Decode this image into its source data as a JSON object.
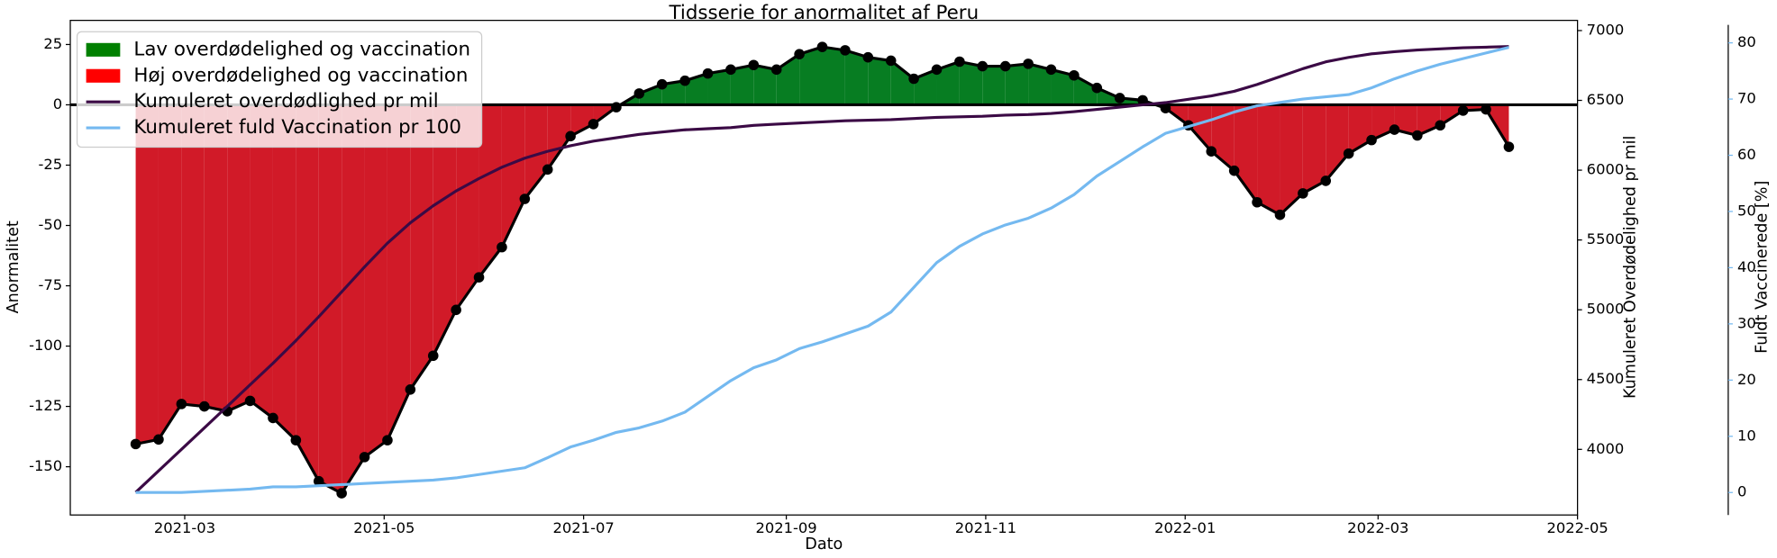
{
  "chart_data": {
    "type": "line",
    "title": "Tidsserie for anormalitet af Peru",
    "xlabel": "Dato",
    "ylabel": "Anormalitet",
    "y2label": "Kumuleret Overdødelighed pr mil",
    "y3label": "Fuldt Vaccinerede [%]",
    "x": [
      "2021-02-14",
      "2021-02-21",
      "2021-02-28",
      "2021-03-07",
      "2021-03-14",
      "2021-03-21",
      "2021-03-28",
      "2021-04-04",
      "2021-04-11",
      "2021-04-18",
      "2021-04-25",
      "2021-05-02",
      "2021-05-09",
      "2021-05-16",
      "2021-05-23",
      "2021-05-30",
      "2021-06-06",
      "2021-06-13",
      "2021-06-20",
      "2021-06-27",
      "2021-07-04",
      "2021-07-11",
      "2021-07-18",
      "2021-07-25",
      "2021-08-01",
      "2021-08-08",
      "2021-08-15",
      "2021-08-22",
      "2021-08-29",
      "2021-09-05",
      "2021-09-12",
      "2021-09-19",
      "2021-09-26",
      "2021-10-03",
      "2021-10-10",
      "2021-10-17",
      "2021-10-24",
      "2021-10-31",
      "2021-11-07",
      "2021-11-14",
      "2021-11-21",
      "2021-11-28",
      "2021-12-05",
      "2021-12-12",
      "2021-12-19",
      "2021-12-26",
      "2022-01-02",
      "2022-01-09",
      "2022-01-16",
      "2022-01-23",
      "2022-01-30",
      "2022-02-06",
      "2022-02-13",
      "2022-02-20",
      "2022-02-27",
      "2022-03-06",
      "2022-03-13",
      "2022-03-20",
      "2022-03-27",
      "2022-04-03",
      "2022-04-10"
    ],
    "xlim": [
      "2021-01-25",
      "2022-05-01"
    ],
    "xticks": [
      "2021-03",
      "2021-05",
      "2021-07",
      "2021-09",
      "2021-11",
      "2022-01",
      "2022-03",
      "2022-05"
    ],
    "ylim": [
      -170,
      35
    ],
    "yticks": [
      -150,
      -125,
      -100,
      -75,
      -50,
      -25,
      0,
      25
    ],
    "y2lim": [
      3530,
      7073
    ],
    "y2ticks": [
      4000,
      4500,
      5000,
      5500,
      6000,
      6500,
      7000
    ],
    "y3lim": [
      -4,
      84
    ],
    "y3ticks": [
      0,
      10,
      20,
      30,
      40,
      50,
      60,
      70,
      80
    ],
    "legend": "upper left",
    "fills": [
      {
        "name": "Lav overdødelighed og vaccination",
        "color": "#077d22",
        "legend_color": "#008000"
      },
      {
        "name": "Høj overdødelighed og vaccination",
        "color": "#d11a28",
        "legend_color": "#ff0000"
      }
    ],
    "series": [
      {
        "color": "#000000",
        "marker": true,
        "values": [
          -140.6,
          -138.7,
          -124,
          -125,
          -127,
          -122.7,
          -129.8,
          -139,
          -156,
          -161,
          -146,
          -139,
          -118,
          -104,
          -85,
          -71.5,
          -59,
          -39,
          -26.8,
          -13,
          -8,
          -1,
          4.7,
          8.5,
          10,
          13,
          14.6,
          16.5,
          14.6,
          21,
          24,
          22.6,
          19.7,
          18.3,
          10.8,
          14.6,
          17.9,
          16,
          16,
          17,
          14.6,
          12.2,
          7,
          2.8,
          1.9,
          -1.4,
          -8.5,
          -19.3,
          -27.3,
          -40.4,
          -45.6,
          -36.7,
          -31.5,
          -20.2,
          -14.6,
          -10.3,
          -12.7,
          -8.5,
          -2.4,
          -1.9,
          -17.4
        ]
      },
      {
        "name": "Kumuleret overdødlighed pr mil",
        "color": "#3b0a45",
        "axis": "y2",
        "values": [
          3692,
          3846,
          4000,
          4154,
          4308,
          4463,
          4617,
          4779,
          4950,
          5128,
          5307,
          5477,
          5623,
          5745,
          5851,
          5940,
          6021,
          6086,
          6135,
          6175,
          6208,
          6232,
          6256,
          6273,
          6289,
          6297,
          6305,
          6321,
          6330,
          6338,
          6346,
          6354,
          6358,
          6362,
          6370,
          6378,
          6382,
          6386,
          6394,
          6398,
          6406,
          6419,
          6435,
          6451,
          6468,
          6484,
          6508,
          6532,
          6565,
          6614,
          6670,
          6727,
          6776,
          6808,
          6833,
          6849,
          6861,
          6869,
          6877,
          6881,
          6886
        ]
      },
      {
        "name": "Kumuleret fuld Vaccination pr 100",
        "color": "#74b9f0",
        "axis": "y3",
        "values": [
          0,
          0,
          0,
          0.2,
          0.4,
          0.6,
          1,
          1,
          1.2,
          1.4,
          1.6,
          1.8,
          2,
          2.2,
          2.6,
          3.2,
          3.8,
          4.4,
          6.2,
          8.1,
          9.3,
          10.7,
          11.5,
          12.7,
          14.3,
          17.1,
          19.9,
          22.2,
          23.6,
          25.6,
          26.8,
          28.2,
          29.6,
          32.1,
          36.5,
          40.9,
          43.8,
          46,
          47.6,
          48.8,
          50.6,
          53,
          56.3,
          58.9,
          61.5,
          63.9,
          65.1,
          66.3,
          67.7,
          68.8,
          69.4,
          70,
          70.4,
          70.8,
          72,
          73.6,
          75,
          76.2,
          77.2,
          78.2,
          79.2
        ]
      }
    ]
  }
}
